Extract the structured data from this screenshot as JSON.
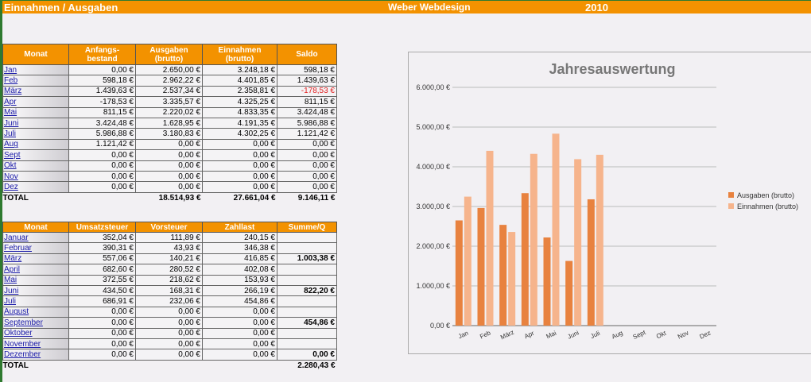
{
  "header": {
    "title": "Einnahmen / Ausgaben",
    "company": "Weber Webdesign",
    "year": "2010"
  },
  "table1": {
    "headers": [
      "Monat",
      "Anfangs-\nbestand",
      "Ausgaben\n(brutto)",
      "Einnahmen\n(brutto)",
      "Saldo"
    ],
    "rows": [
      [
        "Jan",
        "0,00 €",
        "2.650,00 €",
        "3.248,18 €",
        "598,18 €"
      ],
      [
        "Feb",
        "598,18 €",
        "2.962,22 €",
        "4.401,85 €",
        "1.439,63 €"
      ],
      [
        "März",
        "1.439,63 €",
        "2.537,34 €",
        "2.358,81 €",
        "-178,53 €"
      ],
      [
        "Apr",
        "-178,53 €",
        "3.335,57 €",
        "4.325,25 €",
        "811,15 €"
      ],
      [
        "Mai",
        "811,15 €",
        "2.220,02 €",
        "4.833,35 €",
        "3.424,48 €"
      ],
      [
        "Juni",
        "3.424,48 €",
        "1.628,95 €",
        "4.191,35 €",
        "5.986,88 €"
      ],
      [
        "Juli",
        "5.986,88 €",
        "3.180,83 €",
        "4.302,25 €",
        "1.121,42 €"
      ],
      [
        "Aug",
        "1.121,42 €",
        "0,00 €",
        "0,00 €",
        "0,00 €"
      ],
      [
        "Sept",
        "0,00 €",
        "0,00 €",
        "0,00 €",
        "0,00 €"
      ],
      [
        "Okt",
        "0,00 €",
        "0,00 €",
        "0,00 €",
        "0,00 €"
      ],
      [
        "Nov",
        "0,00 €",
        "0,00 €",
        "0,00 €",
        "0,00 €"
      ],
      [
        "Dez",
        "0,00 €",
        "0,00 €",
        "0,00 €",
        "0,00 €"
      ]
    ],
    "total": [
      "TOTAL",
      "",
      "18.514,93 €",
      "27.661,04 €",
      "9.146,11 €"
    ]
  },
  "table2": {
    "headers": [
      "Monat",
      "Umsatzsteuer",
      "Vorsteuer",
      "Zahllast",
      "Summe/Q"
    ],
    "rows": [
      [
        "Januar",
        "352,04 €",
        "111,89 €",
        "240,15 €",
        ""
      ],
      [
        "Februar",
        "390,31 €",
        "43,93 €",
        "346,38 €",
        ""
      ],
      [
        "März",
        "557,06 €",
        "140,21 €",
        "416,85 €",
        "1.003,38 €"
      ],
      [
        "April",
        "682,60 €",
        "280,52 €",
        "402,08 €",
        ""
      ],
      [
        "Mai",
        "372,55 €",
        "218,62 €",
        "153,93 €",
        ""
      ],
      [
        "Juni",
        "434,50 €",
        "168,31 €",
        "266,19 €",
        "822,20 €"
      ],
      [
        "Juli",
        "686,91 €",
        "232,06 €",
        "454,86 €",
        ""
      ],
      [
        "August",
        "0,00 €",
        "0,00 €",
        "0,00 €",
        ""
      ],
      [
        "September",
        "0,00 €",
        "0,00 €",
        "0,00 €",
        "454,86 €"
      ],
      [
        "Oktober",
        "0,00 €",
        "0,00 €",
        "0,00 €",
        ""
      ],
      [
        "November",
        "0,00 €",
        "0,00 €",
        "0,00 €",
        ""
      ],
      [
        "Dezember",
        "0,00 €",
        "0,00 €",
        "0,00 €",
        "0,00 €"
      ]
    ],
    "total": [
      "TOTAL",
      "",
      "",
      "",
      "2.280,43 €"
    ]
  },
  "chart_data": {
    "type": "bar",
    "title": "Jahresauswertung",
    "categories": [
      "Jan",
      "Feb",
      "März",
      "Apr",
      "Mai",
      "Juni",
      "Juli",
      "Aug",
      "Sept",
      "Okt",
      "Nov",
      "Dez"
    ],
    "series": [
      {
        "name": "Ausgaben  (brutto)",
        "color": "#e8823f",
        "values": [
          2650.0,
          2962.22,
          2537.34,
          3335.57,
          2220.02,
          1628.95,
          3180.83,
          0,
          0,
          0,
          0,
          0
        ]
      },
      {
        "name": "Einnahmen  (brutto)",
        "color": "#f6b48c",
        "values": [
          3248.18,
          4401.85,
          2358.81,
          4325.25,
          4833.35,
          4191.35,
          4302.25,
          0,
          0,
          0,
          0,
          0
        ]
      }
    ],
    "ylim": [
      0,
      6000
    ],
    "yticks": [
      "0,00 €",
      "1.000,00 €",
      "2.000,00 €",
      "3.000,00 €",
      "4.000,00 €",
      "5.000,00 €",
      "6.000,00 €"
    ],
    "grid": true,
    "legend": "right"
  }
}
